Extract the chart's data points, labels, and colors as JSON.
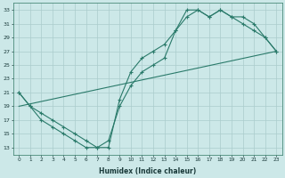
{
  "xlabel": "Humidex (Indice chaleur)",
  "bg_color": "#cce8e8",
  "line_color": "#2a7a6a",
  "xlim": [
    -0.5,
    23.5
  ],
  "ylim": [
    12,
    34
  ],
  "xticks": [
    0,
    1,
    2,
    3,
    4,
    5,
    6,
    7,
    8,
    9,
    10,
    11,
    12,
    13,
    14,
    15,
    16,
    17,
    18,
    19,
    20,
    21,
    22,
    23
  ],
  "yticks": [
    13,
    15,
    17,
    19,
    21,
    23,
    25,
    27,
    29,
    31,
    33
  ],
  "line1_x": [
    0,
    1,
    2,
    3,
    4,
    5,
    6,
    7,
    8,
    9,
    10,
    11,
    12,
    13,
    14,
    15,
    16,
    17,
    18,
    19,
    20,
    21,
    22,
    23
  ],
  "line1_y": [
    21,
    19,
    17,
    16,
    15,
    14,
    13,
    13,
    14,
    19,
    22,
    24,
    25,
    26,
    30,
    33,
    33,
    32,
    33,
    32,
    31,
    30,
    29,
    27
  ],
  "line2_x": [
    0,
    1,
    2,
    3,
    4,
    5,
    6,
    7,
    8,
    9,
    10,
    11,
    12,
    13,
    14,
    15,
    16,
    17,
    18,
    19,
    20,
    21,
    22,
    23
  ],
  "line2_y": [
    21,
    19,
    18,
    17,
    16,
    15,
    14,
    13,
    13,
    20,
    24,
    26,
    27,
    28,
    30,
    32,
    33,
    32,
    33,
    32,
    32,
    31,
    29,
    27
  ],
  "line3_x": [
    0,
    23
  ],
  "line3_y": [
    19,
    27
  ],
  "grid_color": "#aacccc",
  "grid_minor_color": "#bbdddd",
  "marker": "+"
}
